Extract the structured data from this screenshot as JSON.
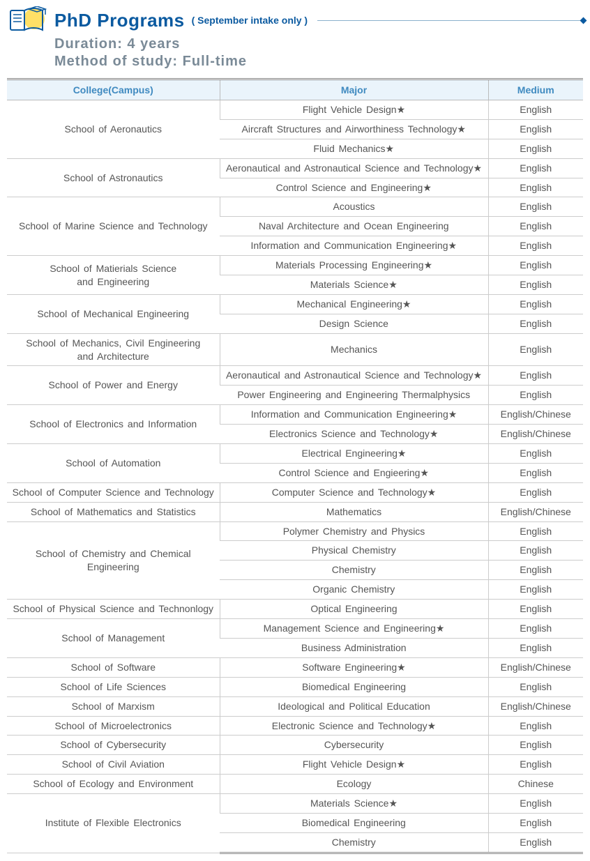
{
  "header": {
    "title": "PhD Programs",
    "note": "( September intake only )",
    "duration": "Duration: 4 years",
    "method": "Method of study: Full-time"
  },
  "columns": {
    "college": "College(Campus)",
    "major": "Major",
    "medium": "Medium"
  },
  "star": "★",
  "colors": {
    "accent": "#0b5aa0",
    "header_bg": "#eaf4fb",
    "header_text": "#3f8ac0",
    "subhead": "#7a8a97",
    "border": "#cccccc",
    "yellow": "#ffe066"
  },
  "schools": [
    {
      "name": "School of Aeronautics",
      "majors": [
        {
          "name": "Flight Vehicle Design",
          "star": true,
          "medium": "English"
        },
        {
          "name": "Aircraft Structures and Airworthiness Technology",
          "star": true,
          "medium": "English"
        },
        {
          "name": "Fluid Mechanics",
          "star": true,
          "medium": "English"
        }
      ]
    },
    {
      "name": "School of Astronautics",
      "majors": [
        {
          "name": "Aeronautical and Astronautical Science and Technology",
          "star": true,
          "medium": "English"
        },
        {
          "name": "Control Science and Engineering",
          "star": true,
          "medium": "English"
        }
      ]
    },
    {
      "name": "School of Marine Science and Technology",
      "majors": [
        {
          "name": "Acoustics",
          "star": false,
          "medium": "English"
        },
        {
          "name": "Naval Architecture and Ocean Engineering",
          "star": false,
          "medium": "English"
        },
        {
          "name": "Information and Communication Engineering",
          "star": true,
          "medium": "English"
        }
      ]
    },
    {
      "name": "School of Matierials Science\nand Engineering",
      "majors": [
        {
          "name": "Materials Processing Engineering",
          "star": true,
          "medium": "English"
        },
        {
          "name": "Materials Science",
          "star": true,
          "medium": "English"
        }
      ]
    },
    {
      "name": "School of Mechanical Engineering",
      "majors": [
        {
          "name": "Mechanical Engineering",
          "star": true,
          "medium": "English"
        },
        {
          "name": "Design Science",
          "star": false,
          "medium": "English"
        }
      ]
    },
    {
      "name": "School of Mechanics, Civil Engineering\nand Architecture",
      "majors": [
        {
          "name": "Mechanics",
          "star": false,
          "medium": "English"
        }
      ]
    },
    {
      "name": "School of Power and Energy",
      "majors": [
        {
          "name": "Aeronautical and Astronautical Science and Technology",
          "star": true,
          "medium": "English"
        },
        {
          "name": "Power Engineering and Engineering Thermalphysics",
          "star": false,
          "medium": "English"
        }
      ]
    },
    {
      "name": "School of Electronics and Information",
      "majors": [
        {
          "name": "Information and Communication Engineering",
          "star": true,
          "medium": "English/Chinese"
        },
        {
          "name": "Electronics Science and Technology",
          "star": true,
          "medium": "English/Chinese"
        }
      ]
    },
    {
      "name": "School of Automation",
      "majors": [
        {
          "name": "Electrical Engineering",
          "star": true,
          "medium": "English"
        },
        {
          "name": "Control Science and Engieering",
          "star": true,
          "medium": "English"
        }
      ]
    },
    {
      "name": "School of Computer Science and Technology",
      "majors": [
        {
          "name": "Computer Science and Technology",
          "star": true,
          "medium": "English"
        }
      ]
    },
    {
      "name": "School of Mathematics and Statistics",
      "majors": [
        {
          "name": "Mathematics",
          "star": false,
          "medium": "English/Chinese"
        }
      ]
    },
    {
      "name": "School of Chemistry and Chemical\nEngineering",
      "majors": [
        {
          "name": "Polymer Chemistry and Physics",
          "star": false,
          "medium": "English"
        },
        {
          "name": "Physical Chemistry",
          "star": false,
          "medium": "English"
        },
        {
          "name": "Chemistry",
          "star": false,
          "medium": "English"
        },
        {
          "name": "Organic Chemistry",
          "star": false,
          "medium": "English"
        }
      ]
    },
    {
      "name": "School of Physical Science and Technonlogy",
      "majors": [
        {
          "name": "Optical Engineering",
          "star": false,
          "medium": "English"
        }
      ]
    },
    {
      "name": "School of Management",
      "majors": [
        {
          "name": "Management Science and Engineering",
          "star": true,
          "medium": "English"
        },
        {
          "name": "Business Administration",
          "star": false,
          "medium": "English"
        }
      ]
    },
    {
      "name": "School of Software",
      "majors": [
        {
          "name": "Software Engineering",
          "star": true,
          "medium": "English/Chinese"
        }
      ]
    },
    {
      "name": "School of Life Sciences",
      "majors": [
        {
          "name": "Biomedical Engineering",
          "star": false,
          "medium": "English"
        }
      ]
    },
    {
      "name": "School of Marxism",
      "majors": [
        {
          "name": "Ideological and Political Education",
          "star": false,
          "medium": "English/Chinese"
        }
      ]
    },
    {
      "name": "School of Microelectronics",
      "majors": [
        {
          "name": "Electronic Science and Technology",
          "star": true,
          "medium": "English"
        }
      ]
    },
    {
      "name": "School of Cybersecurity",
      "majors": [
        {
          "name": "Cybersecurity",
          "star": false,
          "medium": "English"
        }
      ]
    },
    {
      "name": "School of Civil Aviation",
      "majors": [
        {
          "name": "Flight Vehicle Design",
          "star": true,
          "medium": "English"
        }
      ]
    },
    {
      "name": "School of Ecology and Environment",
      "majors": [
        {
          "name": "Ecology",
          "star": false,
          "medium": "Chinese"
        }
      ]
    },
    {
      "name": "Institute of Flexible Electronics",
      "majors": [
        {
          "name": "Materials Science",
          "star": true,
          "medium": "English"
        },
        {
          "name": "Biomedical Engineering",
          "star": false,
          "medium": "English"
        },
        {
          "name": "Chemistry",
          "star": false,
          "medium": "English"
        }
      ]
    }
  ]
}
